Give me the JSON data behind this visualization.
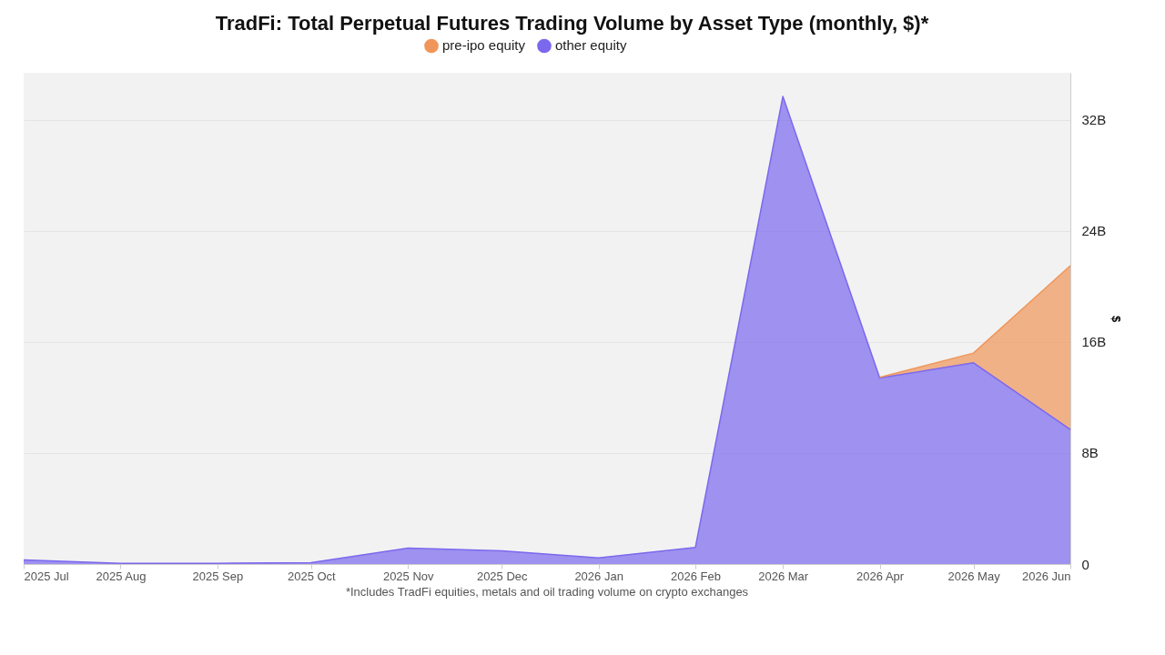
{
  "chart_data": {
    "type": "area",
    "stacked": true,
    "title": "TradFi: Total Perpetual Futures Trading Volume by Asset Type (monthly, $)*",
    "ylabel": "$",
    "x": [
      "2025-07",
      "2025-08",
      "2025-09",
      "2025-10",
      "2025-11",
      "2025-12",
      "2026-01",
      "2026-02",
      "2026-03",
      "2026-04",
      "2026-05",
      "2026-06"
    ],
    "series": [
      {
        "name": "other equity",
        "color": "#7b68ee",
        "values": [
          0.3,
          0.05,
          0.05,
          0.1,
          1.15,
          0.95,
          0.45,
          1.2,
          33.7,
          13.4,
          14.5,
          9.7
        ]
      },
      {
        "name": "pre-ipo equity",
        "color": "#f0965a",
        "values": [
          null,
          null,
          null,
          null,
          null,
          null,
          null,
          null,
          null,
          0.05,
          0.7,
          11.8
        ]
      }
    ],
    "xlim": [
      "2025-07",
      "2026-06"
    ],
    "xticks": [
      {
        "value": "2025-07",
        "label": "2025 Jul"
      },
      {
        "value": "2025-08",
        "label": "2025 Aug"
      },
      {
        "value": "2025-09",
        "label": "2025 Sep"
      },
      {
        "value": "2025-10",
        "label": "2025 Oct"
      },
      {
        "value": "2025-11",
        "label": "2025 Nov"
      },
      {
        "value": "2025-12",
        "label": "2025 Dec"
      },
      {
        "value": "2026-01",
        "label": "2026 Jan"
      },
      {
        "value": "2026-02",
        "label": "2026 Feb"
      },
      {
        "value": "2026-03",
        "label": "2026 Mar"
      },
      {
        "value": "2026-04",
        "label": "2026 Apr"
      },
      {
        "value": "2026-05",
        "label": "2026 May"
      },
      {
        "value": "2026-06",
        "label": "2026 Jun"
      }
    ],
    "ylim": [
      0,
      35.4
    ],
    "yticks": [
      {
        "value": 0,
        "label": "0"
      },
      {
        "value": 8,
        "label": "8B"
      },
      {
        "value": 16,
        "label": "16B"
      },
      {
        "value": 24,
        "label": "24B"
      },
      {
        "value": 32,
        "label": "32B"
      }
    ],
    "grid": "y",
    "legend": "top",
    "annotations": [
      "*Includes TradFi equities, metals and oil trading volume on crypto exchanges"
    ]
  }
}
